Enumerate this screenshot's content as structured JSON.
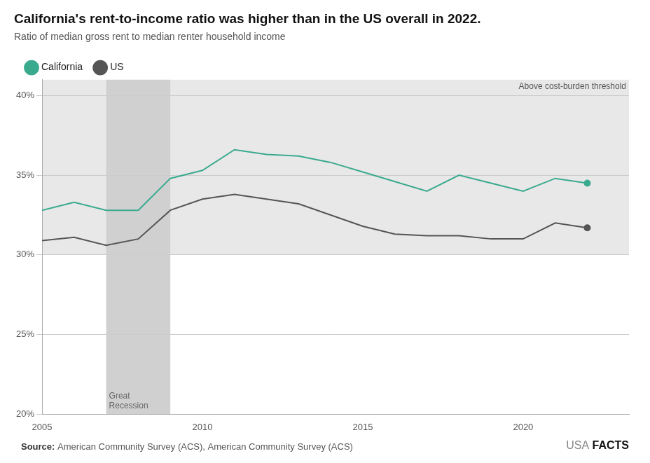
{
  "chart_data": {
    "type": "line",
    "title": "California's rent-to-income ratio was higher than in the US overall in 2022.",
    "subtitle": "Ratio of median gross rent to median renter household income",
    "source_label": "Source:",
    "source": "American Community Survey (ACS), American Community Survey (ACS)",
    "logo": [
      "USA",
      "FACTS"
    ],
    "x": [
      2005,
      2006,
      2007,
      2008,
      2009,
      2010,
      2011,
      2012,
      2013,
      2014,
      2015,
      2016,
      2017,
      2018,
      2019,
      2020,
      2021,
      2022
    ],
    "series": [
      {
        "name": "California",
        "color": "#3aaa8e",
        "values": [
          32.8,
          33.3,
          32.8,
          32.8,
          34.8,
          35.3,
          36.6,
          36.3,
          36.2,
          35.8,
          35.2,
          34.6,
          34.0,
          35.0,
          34.5,
          34.0,
          34.8,
          34.5
        ]
      },
      {
        "name": "US",
        "color": "#555555",
        "values": [
          30.9,
          31.1,
          30.6,
          31.0,
          32.8,
          33.5,
          33.8,
          33.5,
          33.2,
          32.5,
          31.8,
          31.3,
          31.2,
          31.2,
          31.0,
          31.0,
          32.0,
          31.7
        ]
      }
    ],
    "bands": [
      {
        "axis": "y",
        "from": 30,
        "to": 41,
        "color": "#e8e8e8",
        "label": "Above cost-burden threshold"
      },
      {
        "axis": "x",
        "from": 2007,
        "to": 2009,
        "color": "#d0d0d0",
        "label": "Great\nRecession"
      }
    ],
    "xlim": [
      2005,
      2023.3
    ],
    "xticks": [
      2005,
      2010,
      2015,
      2020
    ],
    "ylim": [
      20,
      41
    ],
    "yticks": [
      {
        "value": 20,
        "label": "20%"
      },
      {
        "value": 25,
        "label": "25%"
      },
      {
        "value": 30,
        "label": "30%"
      },
      {
        "value": 35,
        "label": "35%"
      },
      {
        "value": 40,
        "label": "40%"
      }
    ],
    "grid": true,
    "legend": "top"
  }
}
